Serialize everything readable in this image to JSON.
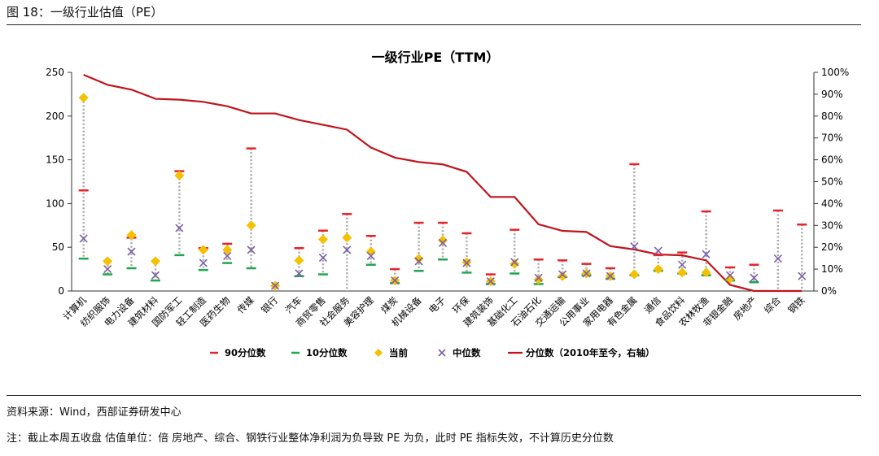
{
  "figure": {
    "title": "图 18：一级行业估值（PE）",
    "source": "资料来源：Wind，西部证券研发中心",
    "note": "注：截止本周五收盘 估值单位：倍 房地产、综合、钢铁行业整体净利润为负导致 PE 为负，此时 PE 指标失效，不计算历史分位数"
  },
  "chart_data": {
    "type": "line",
    "title": "一级行业PE（TTM）",
    "categories": [
      "计算机",
      "纺织服饰",
      "电力设备",
      "建筑材料",
      "国防军工",
      "轻工制造",
      "医药生物",
      "传媒",
      "银行",
      "汽车",
      "商贸零售",
      "社会服务",
      "美容护理",
      "煤炭",
      "机械设备",
      "电子",
      "环保",
      "建筑装饰",
      "基础化工",
      "石油石化",
      "交通运输",
      "公用事业",
      "家用电器",
      "有色金属",
      "通信",
      "食品饮料",
      "农林牧渔",
      "非银金融",
      "房地产",
      "综合",
      "钢铁"
    ],
    "ylim": [
      0,
      250
    ],
    "yticks": [
      0,
      50,
      100,
      150,
      200,
      250
    ],
    "y2lim": [
      0,
      100
    ],
    "y2ticks": [
      "0%",
      "10%",
      "20%",
      "30%",
      "40%",
      "50%",
      "60%",
      "70%",
      "80%",
      "90%",
      "100%"
    ],
    "legend_position": "bottom",
    "series": [
      {
        "name": "90分位数",
        "color": "#e8222a",
        "marker": "dash",
        "values": [
          115,
          null,
          61,
          null,
          137,
          49,
          54,
          163,
          null,
          49,
          69,
          88,
          63,
          25,
          78,
          78,
          66,
          19,
          70,
          36,
          35,
          31,
          26,
          145,
          41,
          44,
          91,
          27,
          30,
          92,
          76
        ]
      },
      {
        "name": "10分位数",
        "color": "#1fa64f",
        "marker": "dash",
        "values": [
          37,
          19,
          26,
          12,
          41,
          24,
          32,
          26,
          null,
          17,
          19,
          null,
          30,
          9,
          23,
          36,
          21,
          8,
          20,
          8,
          16,
          18,
          14,
          18,
          23,
          20,
          18,
          12,
          10,
          null,
          null
        ]
      },
      {
        "name": "当前",
        "color": "#f5c000",
        "marker": "diamond",
        "values": [
          221,
          34,
          64,
          34,
          132,
          47,
          47,
          75,
          6,
          35,
          59,
          61,
          45,
          12,
          37,
          58,
          33,
          11,
          31,
          13,
          17,
          20,
          17,
          19,
          25,
          21,
          21,
          14,
          null,
          null,
          null
        ]
      },
      {
        "name": "中位数",
        "color": "#7b5ea7",
        "marker": "x",
        "values": [
          60,
          25,
          45,
          18,
          72,
          32,
          40,
          47,
          6,
          20,
          38,
          47,
          40,
          12,
          34,
          55,
          32,
          11,
          33,
          15,
          19,
          20,
          17,
          51,
          46,
          30,
          42,
          18,
          15,
          37,
          17
        ]
      },
      {
        "name": "分位数（2010年至今，右轴）",
        "color": "#c0141b",
        "marker": "line",
        "axis": "right",
        "values": [
          98.9,
          94.3,
          92.1,
          87.9,
          87.5,
          86.5,
          84.5,
          81.2,
          81.2,
          78.2,
          76,
          73.8,
          65.6,
          61,
          59,
          57.9,
          54.5,
          43,
          43,
          30.5,
          27.5,
          27,
          20.5,
          19,
          16.7,
          16.3,
          14,
          2.8,
          0,
          0,
          0
        ]
      }
    ]
  }
}
